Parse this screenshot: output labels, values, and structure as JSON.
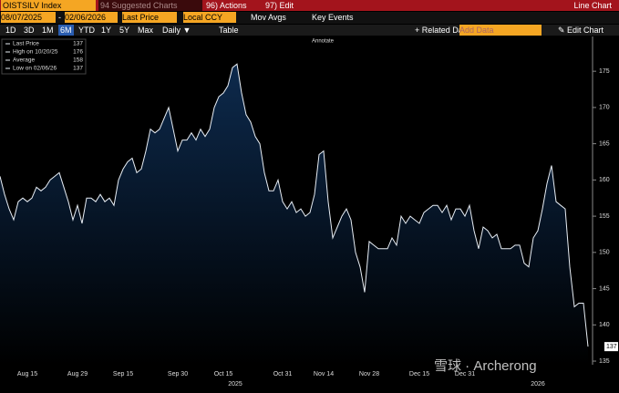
{
  "toolbar": {
    "security": "OISTSILV Index",
    "suggested": "94 Suggested Charts",
    "actions": "96) Actions",
    "edit": "97) Edit",
    "chart_type": "Line Chart"
  },
  "controls": {
    "start": "08/07/2025",
    "dash": "-",
    "end": "02/06/2026",
    "field": "Last Price",
    "currency": "Local CCY",
    "mov_avgs": "Mov Avgs",
    "key_events": "Key Events"
  },
  "periods": [
    "1D",
    "3D",
    "1M",
    "6M",
    "YTD",
    "1Y",
    "5Y",
    "Max"
  ],
  "frequency": "Daily ▼",
  "table": "Table",
  "annotate": "Annotate",
  "related": "+ Related Dat",
  "add_data": "Add Data",
  "edit_chart": "✎ Edit Chart",
  "legend": [
    {
      "label": "Last Price",
      "value": 137
    },
    {
      "label": "High on 10/20/25",
      "value": 176
    },
    {
      "label": "Average",
      "value": 158
    },
    {
      "label": "Low on 02/06/26",
      "value": 137
    }
  ],
  "watermark": "雪球 · Archerong",
  "years": [
    "2025",
    "2026"
  ],
  "chart_data": {
    "type": "area",
    "color": "#e8eef5",
    "fill": "#0d2a4d",
    "grid": false,
    "ylim": [
      134.5,
      179.8
    ],
    "yticks": [
      135,
      140,
      145,
      150,
      155,
      160,
      165,
      170,
      175
    ],
    "categories": [
      null,
      null,
      null,
      null,
      null,
      null,
      "Aug 15",
      null,
      null,
      null,
      null,
      null,
      null,
      null,
      null,
      null,
      null,
      "Aug 29",
      null,
      null,
      null,
      null,
      null,
      null,
      null,
      null,
      null,
      "Sep 15",
      null,
      null,
      null,
      null,
      null,
      null,
      null,
      null,
      null,
      null,
      null,
      "Sep 30",
      null,
      null,
      null,
      null,
      null,
      null,
      null,
      null,
      null,
      "Oct 15",
      null,
      null,
      null,
      null,
      null,
      null,
      null,
      null,
      null,
      null,
      null,
      null,
      "Oct 31",
      null,
      null,
      null,
      null,
      null,
      null,
      null,
      null,
      "Nov 14",
      null,
      null,
      null,
      null,
      null,
      null,
      null,
      null,
      null,
      "Nov 28",
      null,
      null,
      null,
      null,
      null,
      null,
      null,
      null,
      null,
      null,
      "Dec 15",
      null,
      null,
      null,
      null,
      null,
      null,
      null,
      null,
      null,
      "Dec 31",
      null,
      null,
      null,
      null,
      null,
      null,
      null,
      null,
      null,
      null,
      null,
      null,
      null,
      null,
      null,
      null,
      null,
      null,
      null,
      null,
      null,
      null,
      null,
      null,
      null,
      null,
      null
    ],
    "values": [
      160.5,
      158,
      156,
      154.5,
      157,
      157.5,
      157,
      157.5,
      159,
      158.5,
      159,
      160,
      160.5,
      161,
      159,
      157,
      154.5,
      156.5,
      154,
      157.5,
      157.5,
      157,
      158,
      157,
      157.5,
      156.5,
      160,
      161.5,
      162.5,
      163,
      161,
      161.5,
      164,
      167,
      166.5,
      167,
      168.5,
      170,
      167,
      164,
      165.5,
      165.5,
      166.5,
      165.5,
      167,
      166,
      167,
      170,
      171.5,
      172,
      173,
      175.5,
      176,
      172,
      169,
      168,
      166,
      165,
      161,
      158.5,
      158.5,
      160,
      157,
      156,
      157,
      155.5,
      156,
      155,
      155.5,
      158,
      163.5,
      164,
      157,
      152,
      153.5,
      155,
      156,
      154.5,
      150,
      148,
      144.5,
      151.5,
      151,
      150.5,
      150.5,
      150.5,
      152,
      151,
      155,
      154,
      155,
      154.5,
      154,
      155.5,
      156,
      156.5,
      156.5,
      155.5,
      156.5,
      154.5,
      156,
      156,
      155,
      156.5,
      153,
      150.5,
      153.5,
      153,
      152,
      152.5,
      150.5,
      150.5,
      150.5,
      151,
      151,
      148.5,
      148,
      152,
      153,
      156,
      159.5,
      162,
      157,
      156.5,
      156,
      148,
      142.5,
      143,
      143,
      137
    ]
  }
}
